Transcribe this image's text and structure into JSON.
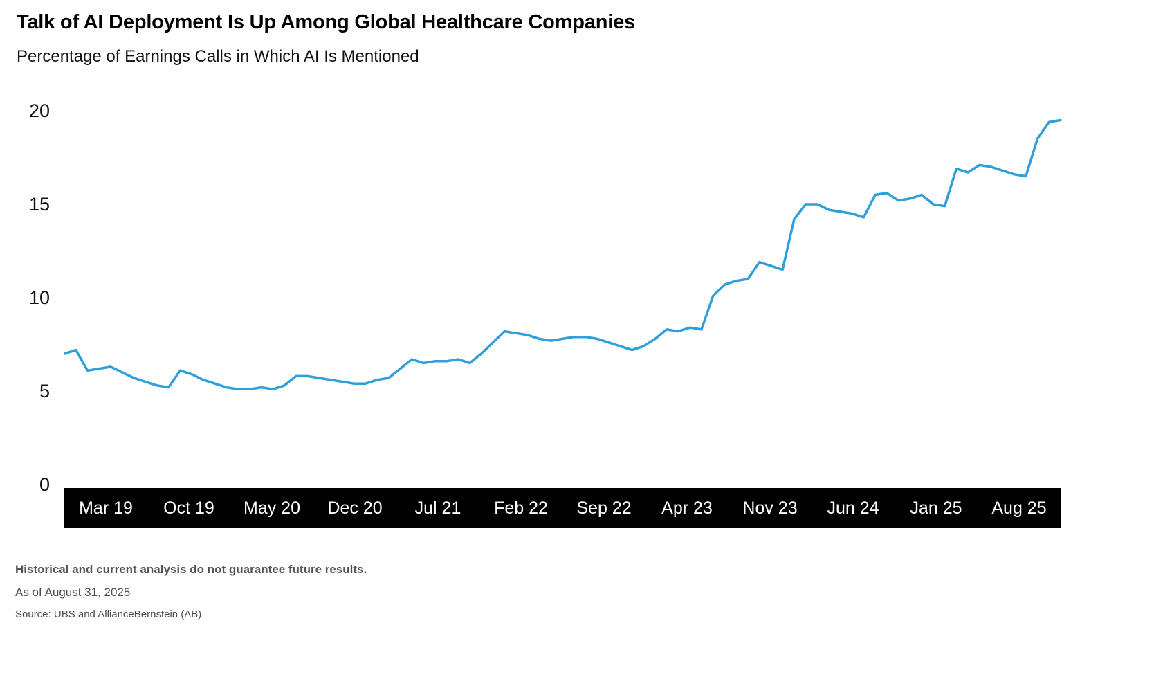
{
  "title": "Talk of AI Deployment Is Up Among Global Healthcare Companies",
  "subtitle": "Percentage of Earnings Calls in Which AI Is Mentioned",
  "footer": {
    "disclaimer": "Historical and current analysis do not guarantee future results.",
    "as_of": "As of August 31, 2025",
    "source": "Source: UBS and AllianceBernstein (AB)"
  },
  "colors": {
    "line": "#2E9FD8",
    "axis_band_background": "#000000",
    "axis_band_text": "#ffffff",
    "title_text": "#000000",
    "footer_text": "#4d4d4d"
  },
  "chart_data": {
    "type": "line",
    "title": "Talk of AI Deployment Is Up Among Global Healthcare Companies",
    "subtitle": "Percentage of Earnings Calls in Which AI Is Mentioned",
    "xlabel": "",
    "ylabel": "",
    "ylim": [
      0,
      20
    ],
    "y_ticks": [
      0,
      5,
      10,
      15,
      20
    ],
    "x_tick_labels": [
      "Mar 19",
      "Oct 19",
      "May 20",
      "Dec 20",
      "Jul 21",
      "Feb 22",
      "Sep 22",
      "Apr 23",
      "Nov 23",
      "Jun 24",
      "Jan 25",
      "Aug 25"
    ],
    "grid": false,
    "legend": "none",
    "series": [
      {
        "name": "Percentage of earnings calls in which AI is mentioned",
        "values": [
          7.0,
          7.2,
          6.1,
          6.2,
          6.3,
          6.0,
          5.7,
          5.5,
          5.3,
          5.2,
          6.1,
          5.9,
          5.6,
          5.4,
          5.2,
          5.1,
          5.1,
          5.2,
          5.1,
          5.3,
          5.8,
          5.8,
          5.7,
          5.6,
          5.5,
          5.4,
          5.4,
          5.6,
          5.7,
          6.2,
          6.7,
          6.5,
          6.6,
          6.6,
          6.7,
          6.5,
          7.0,
          7.6,
          8.2,
          8.1,
          8.0,
          7.8,
          7.7,
          7.8,
          7.9,
          7.9,
          7.8,
          7.6,
          7.4,
          7.2,
          7.4,
          7.8,
          8.3,
          8.2,
          8.4,
          8.3,
          10.1,
          10.7,
          10.9,
          11.0,
          11.9,
          11.7,
          11.5,
          14.2,
          15.0,
          15.0,
          14.7,
          14.6,
          14.5,
          14.3,
          15.5,
          15.6,
          15.2,
          15.3,
          15.5,
          15.0,
          14.9,
          16.9,
          16.7,
          17.1,
          17.0,
          16.8,
          16.6,
          16.5,
          18.5,
          19.4,
          19.5
        ]
      }
    ]
  }
}
